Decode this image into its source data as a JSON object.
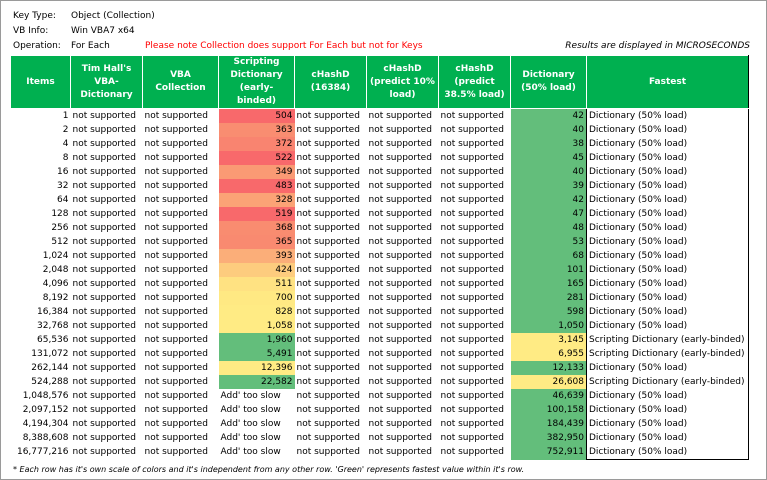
{
  "info": {
    "key_type_label": "Key Type:",
    "key_type_value": "Object (Collection)",
    "vb_info_label": "VB Info:",
    "vb_info_value": "Win VBA7 x64",
    "operation_label": "Operation:",
    "operation_value": "For Each",
    "note": "Please note Collection does support For Each but not for Keys",
    "results_unit": "Results are displayed in MICROSECONDS"
  },
  "colors": {
    "header_bg": "#00b050",
    "note_red": "#ff0000",
    "best_green": "#63be7b",
    "mid_yellow": "#ffeb84",
    "worst_red": "#f8696b"
  },
  "headers": [
    "Items",
    "Tim Hall's VBA-Dictionary",
    "VBA Collection",
    "Scripting Dictionary (early-binded)",
    "cHashD (16384)",
    "cHashD (predict 10% load)",
    "cHashD (predict 38.5% load)",
    "Dictionary (50% load)",
    "Fastest"
  ],
  "rows": [
    {
      "items": "1",
      "tim": "not supported",
      "coll": "not supported",
      "sd": "504",
      "sd_color": "#f8696b",
      "h16": "not supported",
      "h10": "not supported",
      "h385": "not supported",
      "dict": "42",
      "dict_color": "#63be7b",
      "fastest": "Dictionary (50% load)"
    },
    {
      "items": "2",
      "tim": "not supported",
      "coll": "not supported",
      "sd": "363",
      "sd_color": "#f98d71",
      "h16": "not supported",
      "h10": "not supported",
      "h385": "not supported",
      "dict": "40",
      "dict_color": "#63be7b",
      "fastest": "Dictionary (50% load)"
    },
    {
      "items": "4",
      "tim": "not supported",
      "coll": "not supported",
      "sd": "372",
      "sd_color": "#f98470",
      "h16": "not supported",
      "h10": "not supported",
      "h385": "not supported",
      "dict": "38",
      "dict_color": "#63be7b",
      "fastest": "Dictionary (50% load)"
    },
    {
      "items": "8",
      "tim": "not supported",
      "coll": "not supported",
      "sd": "522",
      "sd_color": "#f8696b",
      "h16": "not supported",
      "h10": "not supported",
      "h385": "not supported",
      "dict": "45",
      "dict_color": "#63be7b",
      "fastest": "Dictionary (50% load)"
    },
    {
      "items": "16",
      "tim": "not supported",
      "coll": "not supported",
      "sd": "349",
      "sd_color": "#fa9a74",
      "h16": "not supported",
      "h10": "not supported",
      "h385": "not supported",
      "dict": "40",
      "dict_color": "#63be7b",
      "fastest": "Dictionary (50% load)"
    },
    {
      "items": "32",
      "tim": "not supported",
      "coll": "not supported",
      "sd": "483",
      "sd_color": "#f8696b",
      "h16": "not supported",
      "h10": "not supported",
      "h385": "not supported",
      "dict": "39",
      "dict_color": "#63be7b",
      "fastest": "Dictionary (50% load)"
    },
    {
      "items": "64",
      "tim": "not supported",
      "coll": "not supported",
      "sd": "328",
      "sd_color": "#fba376",
      "h16": "not supported",
      "h10": "not supported",
      "h385": "not supported",
      "dict": "42",
      "dict_color": "#63be7b",
      "fastest": "Dictionary (50% load)"
    },
    {
      "items": "128",
      "tim": "not supported",
      "coll": "not supported",
      "sd": "519",
      "sd_color": "#f8696b",
      "h16": "not supported",
      "h10": "not supported",
      "h385": "not supported",
      "dict": "47",
      "dict_color": "#63be7b",
      "fastest": "Dictionary (50% load)"
    },
    {
      "items": "256",
      "tim": "not supported",
      "coll": "not supported",
      "sd": "368",
      "sd_color": "#f98c70",
      "h16": "not supported",
      "h10": "not supported",
      "h385": "not supported",
      "dict": "48",
      "dict_color": "#63be7b",
      "fastest": "Dictionary (50% load)"
    },
    {
      "items": "512",
      "tim": "not supported",
      "coll": "not supported",
      "sd": "365",
      "sd_color": "#f98a70",
      "h16": "not supported",
      "h10": "not supported",
      "h385": "not supported",
      "dict": "53",
      "dict_color": "#63be7b",
      "fastest": "Dictionary (50% load)"
    },
    {
      "items": "1,024",
      "tim": "not supported",
      "coll": "not supported",
      "sd": "393",
      "sd_color": "#fbae79",
      "h16": "not supported",
      "h10": "not supported",
      "h385": "not supported",
      "dict": "68",
      "dict_color": "#63be7b",
      "fastest": "Dictionary (50% load)"
    },
    {
      "items": "2,048",
      "tim": "not supported",
      "coll": "not supported",
      "sd": "424",
      "sd_color": "#fdcc7e",
      "h16": "not supported",
      "h10": "not supported",
      "h385": "not supported",
      "dict": "101",
      "dict_color": "#63be7b",
      "fastest": "Dictionary (50% load)"
    },
    {
      "items": "4,096",
      "tim": "not supported",
      "coll": "not supported",
      "sd": "511",
      "sd_color": "#ffe282",
      "h16": "not supported",
      "h10": "not supported",
      "h385": "not supported",
      "dict": "165",
      "dict_color": "#63be7b",
      "fastest": "Dictionary (50% load)"
    },
    {
      "items": "8,192",
      "tim": "not supported",
      "coll": "not supported",
      "sd": "700",
      "sd_color": "#ffe983",
      "h16": "not supported",
      "h10": "not supported",
      "h385": "not supported",
      "dict": "281",
      "dict_color": "#63be7b",
      "fastest": "Dictionary (50% load)"
    },
    {
      "items": "16,384",
      "tim": "not supported",
      "coll": "not supported",
      "sd": "828",
      "sd_color": "#ffeb84",
      "h16": "not supported",
      "h10": "not supported",
      "h385": "not supported",
      "dict": "598",
      "dict_color": "#63be7b",
      "fastest": "Dictionary (50% load)"
    },
    {
      "items": "32,768",
      "tim": "not supported",
      "coll": "not supported",
      "sd": "1,058",
      "sd_color": "#ffeb84",
      "h16": "not supported",
      "h10": "not supported",
      "h385": "not supported",
      "dict": "1,050",
      "dict_color": "#63be7b",
      "fastest": "Dictionary (50% load)"
    },
    {
      "items": "65,536",
      "tim": "not supported",
      "coll": "not supported",
      "sd": "1,960",
      "sd_color": "#63be7b",
      "h16": "not supported",
      "h10": "not supported",
      "h385": "not supported",
      "dict": "3,145",
      "dict_color": "#ffeb84",
      "fastest": "Scripting Dictionary (early-binded)"
    },
    {
      "items": "131,072",
      "tim": "not supported",
      "coll": "not supported",
      "sd": "5,491",
      "sd_color": "#63be7b",
      "h16": "not supported",
      "h10": "not supported",
      "h385": "not supported",
      "dict": "6,955",
      "dict_color": "#ffeb84",
      "fastest": "Scripting Dictionary (early-binded)"
    },
    {
      "items": "262,144",
      "tim": "not supported",
      "coll": "not supported",
      "sd": "12,396",
      "sd_color": "#ffeb84",
      "h16": "not supported",
      "h10": "not supported",
      "h385": "not supported",
      "dict": "12,133",
      "dict_color": "#63be7b",
      "fastest": "Dictionary (50% load)"
    },
    {
      "items": "524,288",
      "tim": "not supported",
      "coll": "not supported",
      "sd": "22,582",
      "sd_color": "#63be7b",
      "h16": "not supported",
      "h10": "not supported",
      "h385": "not supported",
      "dict": "26,608",
      "dict_color": "#ffeb84",
      "fastest": "Scripting Dictionary (early-binded)"
    },
    {
      "items": "1,048,576",
      "tim": "not supported",
      "coll": "not supported",
      "sd": "Add' too slow",
      "sd_color": "",
      "h16": "not supported",
      "h10": "not supported",
      "h385": "not supported",
      "dict": "46,639",
      "dict_color": "#63be7b",
      "fastest": "Dictionary (50% load)"
    },
    {
      "items": "2,097,152",
      "tim": "not supported",
      "coll": "not supported",
      "sd": "Add' too slow",
      "sd_color": "",
      "h16": "not supported",
      "h10": "not supported",
      "h385": "not supported",
      "dict": "100,158",
      "dict_color": "#63be7b",
      "fastest": "Dictionary (50% load)"
    },
    {
      "items": "4,194,304",
      "tim": "not supported",
      "coll": "not supported",
      "sd": "Add' too slow",
      "sd_color": "",
      "h16": "not supported",
      "h10": "not supported",
      "h385": "not supported",
      "dict": "184,439",
      "dict_color": "#63be7b",
      "fastest": "Dictionary (50% load)"
    },
    {
      "items": "8,388,608",
      "tim": "not supported",
      "coll": "not supported",
      "sd": "Add' too slow",
      "sd_color": "",
      "h16": "not supported",
      "h10": "not supported",
      "h385": "not supported",
      "dict": "382,950",
      "dict_color": "#63be7b",
      "fastest": "Dictionary (50% load)"
    },
    {
      "items": "16,777,216",
      "tim": "not supported",
      "coll": "not supported",
      "sd": "Add' too slow",
      "sd_color": "",
      "h16": "not supported",
      "h10": "not supported",
      "h385": "not supported",
      "dict": "752,911",
      "dict_color": "#63be7b",
      "fastest": "Dictionary (50% load)"
    }
  ],
  "footnote": "* Each row has it's own scale of colors and it's independent from any other row. 'Green' represents fastest value within it's row."
}
